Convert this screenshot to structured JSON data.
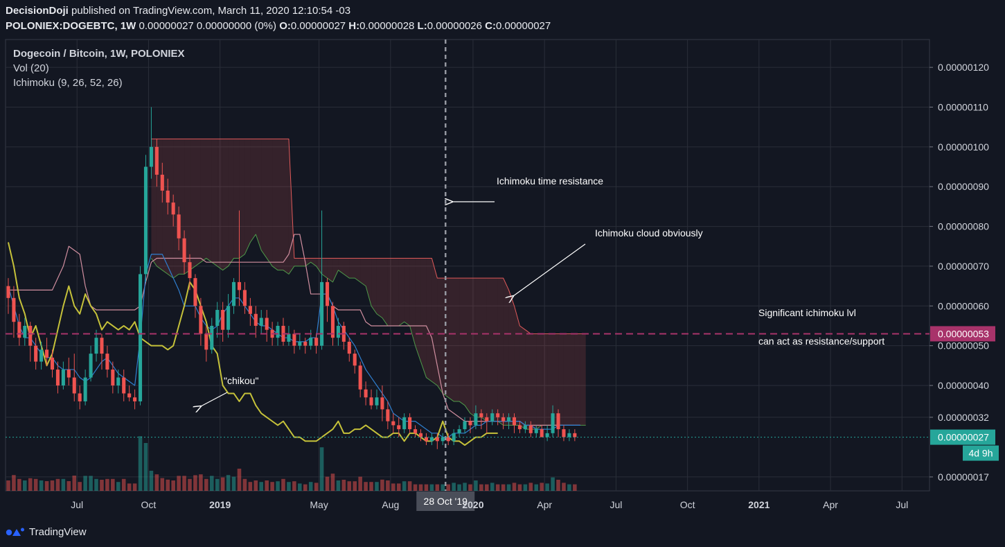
{
  "header": {
    "author": "DecisionDoji",
    "published_text": "published on TradingView.com, March 11, 2020 12:10:54 -03",
    "symbol": "POLONIEX:DOGEBTC, 1W",
    "change": "0.00000027 0.00000000 (0%)",
    "o_label": "O:",
    "o_value": "0.00000027",
    "h_label": "H:",
    "h_value": "0.00000028",
    "l_label": "L:",
    "l_value": "0.00000026",
    "c_label": "C:",
    "c_value": "0.00000027"
  },
  "legend": {
    "title": "Dogecoin / Bitcoin, 1W, POLONIEX",
    "vol": "Vol (20)",
    "ichimoku": "Ichimoku (9, 26, 52, 26)"
  },
  "annotations": {
    "time_resistance": "Ichimoku time resistance",
    "cloud": "Ichimoku cloud obviously",
    "significant": "Significant ichimoku lvl",
    "act_as": "can act as resistance/support",
    "chikou": "\"chikou\""
  },
  "crosshair_label": "28 Oct '19",
  "countdown": "4d 9h",
  "footer": {
    "brand": "TradingView"
  },
  "colors": {
    "background": "#131722",
    "up": "#26a69a",
    "down": "#ef5350",
    "chikou": "#c6c23a",
    "tenkan": "#2f7fd0",
    "kijun": "#d18fa0",
    "span_a": "#4f9a4a",
    "span_b": "#e05a5a",
    "level": "#a8336a",
    "last_price": "#26a69a"
  },
  "chart_data": {
    "type": "candlestick",
    "timeframe": "1W",
    "y_scale": "linear",
    "y_ticks": [
      "0.00000120",
      "0.00000110",
      "0.00000100",
      "0.00000090",
      "0.00000080",
      "0.00000070",
      "0.00000060",
      "0.00000050",
      "0.00000040",
      "0.00000032",
      "0.00000017"
    ],
    "y_tick_values": [
      120,
      110,
      100,
      90,
      80,
      70,
      60,
      50,
      40,
      32,
      17
    ],
    "ylim": [
      13.5,
      127
    ],
    "x_ticks": [
      "Jul",
      "Oct",
      "2019",
      "May",
      "Aug",
      "2020",
      "Apr",
      "Jul",
      "Oct",
      "2021",
      "Apr",
      "Jul"
    ],
    "x_tick_bold": [
      false,
      false,
      true,
      false,
      false,
      true,
      false,
      false,
      false,
      true,
      false,
      false
    ],
    "x_tick_weeks": [
      13,
      26,
      39,
      57,
      70,
      85,
      98,
      111,
      124,
      137,
      150,
      163
    ],
    "x_range_weeks": [
      0,
      168
    ],
    "price_unit_note": "values in units of 1e-8 BTC",
    "candles_weeks_start": 0,
    "candles": [
      [
        65,
        62,
        67,
        58
      ],
      [
        62,
        56,
        65,
        52
      ],
      [
        56,
        52,
        58,
        50
      ],
      [
        52,
        55,
        57,
        50
      ],
      [
        55,
        50,
        56,
        46
      ],
      [
        50,
        46,
        52,
        44
      ],
      [
        46,
        49,
        51,
        44
      ],
      [
        49,
        47,
        52,
        45
      ],
      [
        47,
        44,
        49,
        42
      ],
      [
        44,
        40,
        46,
        38
      ],
      [
        40,
        44,
        46,
        39
      ],
      [
        44,
        42,
        47,
        40
      ],
      [
        42,
        38,
        48,
        36
      ],
      [
        38,
        36,
        40,
        34
      ],
      [
        36,
        42,
        44,
        35
      ],
      [
        42,
        48,
        50,
        41
      ],
      [
        48,
        52,
        54,
        46
      ],
      [
        52,
        48,
        53,
        44
      ],
      [
        48,
        44,
        50,
        42
      ],
      [
        44,
        40,
        46,
        38
      ],
      [
        40,
        42,
        44,
        38
      ],
      [
        42,
        38,
        44,
        36
      ],
      [
        38,
        37,
        40,
        36
      ],
      [
        37,
        36,
        39,
        34
      ],
      [
        36,
        68,
        70,
        35
      ],
      [
        68,
        95,
        98,
        66
      ],
      [
        95,
        100,
        110,
        92
      ],
      [
        100,
        93,
        102,
        90
      ],
      [
        93,
        89,
        96,
        86
      ],
      [
        89,
        86,
        92,
        83
      ],
      [
        86,
        83,
        88,
        80
      ],
      [
        83,
        77,
        85,
        74
      ],
      [
        77,
        71,
        79,
        68
      ],
      [
        71,
        67,
        73,
        64
      ],
      [
        67,
        60,
        68,
        57
      ],
      [
        60,
        53,
        62,
        50
      ],
      [
        53,
        49,
        55,
        46
      ],
      [
        49,
        55,
        57,
        48
      ],
      [
        55,
        59,
        61,
        52
      ],
      [
        59,
        54,
        61,
        51
      ],
      [
        54,
        60,
        63,
        52
      ],
      [
        60,
        66,
        67,
        58
      ],
      [
        66,
        64,
        84,
        60
      ],
      [
        64,
        60,
        66,
        58
      ],
      [
        60,
        58,
        62,
        55
      ],
      [
        58,
        55,
        60,
        52
      ],
      [
        55,
        57,
        59,
        53
      ],
      [
        57,
        54,
        59,
        51
      ],
      [
        54,
        52,
        56,
        50
      ],
      [
        52,
        55,
        56,
        50
      ],
      [
        55,
        51,
        57,
        50
      ],
      [
        51,
        53,
        55,
        50
      ],
      [
        53,
        50,
        54,
        48
      ],
      [
        50,
        51,
        53,
        49
      ],
      [
        51,
        50,
        52,
        48
      ],
      [
        50,
        52,
        54,
        49
      ],
      [
        52,
        50,
        53,
        48
      ],
      [
        50,
        66,
        84,
        49
      ],
      [
        66,
        60,
        67,
        56
      ],
      [
        60,
        52,
        61,
        50
      ],
      [
        52,
        55,
        57,
        50
      ],
      [
        55,
        51,
        56,
        49
      ],
      [
        51,
        48,
        52,
        46
      ],
      [
        48,
        45,
        49,
        43
      ],
      [
        45,
        39,
        46,
        37
      ],
      [
        39,
        37,
        41,
        35
      ],
      [
        37,
        35,
        39,
        34
      ],
      [
        35,
        37,
        39,
        34
      ],
      [
        37,
        34,
        40,
        31
      ],
      [
        34,
        31,
        36,
        29
      ],
      [
        31,
        30,
        33,
        28
      ],
      [
        30,
        29,
        32,
        27
      ],
      [
        29,
        32,
        33,
        28
      ],
      [
        32,
        29,
        33,
        28
      ],
      [
        29,
        28,
        30,
        27
      ],
      [
        28,
        27,
        29,
        26
      ],
      [
        27,
        26,
        28,
        25
      ],
      [
        26,
        27,
        28,
        25
      ],
      [
        27,
        26,
        28,
        24
      ],
      [
        26,
        27,
        28,
        25
      ],
      [
        27,
        26,
        28,
        25
      ],
      [
        26,
        28,
        29,
        25
      ],
      [
        28,
        29,
        30,
        27
      ],
      [
        29,
        31,
        32,
        28
      ],
      [
        31,
        30,
        32,
        28
      ],
      [
        30,
        33,
        35,
        29
      ],
      [
        33,
        32,
        34,
        29
      ],
      [
        32,
        31,
        33,
        28
      ],
      [
        31,
        33,
        34,
        30
      ],
      [
        33,
        32,
        34,
        30
      ],
      [
        32,
        31,
        33,
        29
      ],
      [
        31,
        32,
        33,
        29
      ],
      [
        32,
        30,
        33,
        28
      ],
      [
        30,
        29,
        31,
        28
      ],
      [
        29,
        30,
        31,
        28
      ],
      [
        30,
        28,
        31,
        27
      ],
      [
        28,
        29,
        30,
        27
      ],
      [
        29,
        27,
        30,
        27
      ],
      [
        27,
        28,
        30,
        26
      ],
      [
        28,
        33,
        35,
        27
      ],
      [
        33,
        29,
        34,
        27
      ],
      [
        29,
        27,
        30,
        26
      ],
      [
        27,
        28,
        29,
        26
      ],
      [
        28,
        27,
        29,
        26
      ]
    ],
    "volume_max_note": "relative heights",
    "tenkan": [
      65,
      60,
      55,
      52,
      52,
      50,
      48,
      47,
      47,
      45,
      44,
      44,
      44,
      42,
      41,
      42,
      44,
      46,
      47,
      45,
      43,
      42,
      41,
      40,
      52,
      68,
      73,
      73,
      73,
      70,
      67,
      64,
      60,
      60,
      60,
      57,
      55,
      54,
      55,
      58,
      60,
      62,
      62,
      60,
      58,
      56,
      55,
      55,
      54,
      53,
      52,
      52,
      51,
      51,
      51,
      52,
      52,
      63,
      63,
      60,
      56,
      54,
      52,
      50,
      47,
      44,
      42,
      40,
      38,
      36,
      33,
      32,
      31,
      31,
      31,
      30,
      29,
      28,
      28,
      27,
      27,
      28,
      28,
      28,
      29,
      30,
      30,
      31,
      31,
      31,
      31,
      31,
      31,
      31,
      30,
      30,
      29,
      29,
      29,
      29,
      30,
      30,
      30,
      30,
      30
    ],
    "kijun": [
      64,
      64,
      64,
      64,
      64,
      64,
      64,
      64,
      64,
      67,
      70,
      75,
      74,
      73,
      65,
      60,
      59,
      59,
      59,
      59,
      59,
      59,
      59,
      59,
      60,
      66,
      71,
      72,
      72,
      72,
      72,
      72,
      72,
      72,
      72,
      72,
      71,
      71,
      71,
      71,
      71,
      71,
      71,
      71,
      71,
      71,
      71,
      71,
      71,
      71,
      71,
      73,
      78,
      78,
      71,
      63,
      63,
      63,
      63,
      60,
      59,
      59,
      59,
      59,
      59,
      56,
      55,
      55,
      55,
      55,
      55,
      55,
      55,
      55,
      55,
      55,
      55,
      52,
      45,
      38,
      34,
      33,
      32,
      31,
      31,
      31,
      31,
      31,
      31,
      31,
      31,
      31,
      31,
      31,
      30,
      30,
      30,
      30,
      30,
      30,
      30,
      30,
      30,
      30,
      30
    ],
    "span_a_start": 26,
    "span_a": [
      72,
      70,
      69,
      68,
      67,
      68,
      68,
      69,
      70,
      71,
      72,
      71,
      70,
      69,
      70,
      72,
      72,
      73,
      76,
      78,
      74,
      72,
      70,
      69,
      69,
      68,
      70,
      70,
      70,
      71,
      70,
      68,
      67,
      66,
      69,
      68,
      67,
      67,
      66,
      65,
      60,
      58,
      57,
      55,
      55,
      55,
      56,
      55,
      50,
      46,
      42,
      41,
      40,
      38,
      37,
      36,
      36,
      35,
      33,
      32,
      32,
      31,
      31,
      31,
      30,
      30,
      30,
      30,
      29,
      29,
      29,
      30,
      30,
      30,
      30,
      30,
      30,
      30,
      30,
      30
    ],
    "span_b_start": 26,
    "span_b": [
      102,
      102,
      102,
      102,
      102,
      102,
      102,
      102,
      102,
      102,
      102,
      102,
      102,
      102,
      102,
      102,
      102,
      102,
      102,
      102,
      102,
      102,
      102,
      102,
      102,
      102,
      72,
      72,
      72,
      72,
      72,
      72,
      72,
      72,
      72,
      72,
      72,
      72,
      72,
      72,
      72,
      72,
      72,
      72,
      72,
      72,
      72,
      72,
      72,
      72,
      72,
      72,
      67,
      67,
      67,
      67,
      67,
      67,
      67,
      67,
      67,
      67,
      67,
      67,
      67,
      64,
      60,
      55,
      54,
      53,
      53,
      53,
      53,
      53,
      53,
      53,
      53,
      53,
      53,
      53,
      53,
      53,
      53,
      53,
      53,
      53,
      53,
      53,
      53,
      53
    ],
    "chikou_start": 0,
    "chikou": [
      76,
      70,
      62,
      58,
      52,
      55,
      50,
      45,
      48,
      54,
      60,
      65,
      60,
      58,
      63,
      60,
      58,
      54,
      56,
      55,
      54,
      55,
      54,
      56,
      52,
      51,
      50,
      50,
      50,
      49,
      50,
      55,
      60,
      66,
      64,
      60,
      56,
      50,
      48,
      40,
      38,
      38,
      36,
      38,
      38,
      35,
      33,
      32,
      31,
      30,
      31,
      29,
      27,
      27,
      26,
      26,
      26,
      27,
      28,
      29,
      31,
      28,
      28,
      29,
      29,
      30,
      29,
      28,
      27,
      27,
      28,
      28,
      26,
      28,
      28,
      27,
      26,
      26,
      27,
      31,
      27,
      26,
      26,
      25,
      26,
      27,
      27,
      28,
      28,
      28
    ],
    "level_line": {
      "value": 53,
      "label": "0.00000053",
      "text": "Significant ichimoku lvl"
    },
    "last_price": {
      "value": 27,
      "label": "0.00000027"
    },
    "time_marker_week": 80
  }
}
